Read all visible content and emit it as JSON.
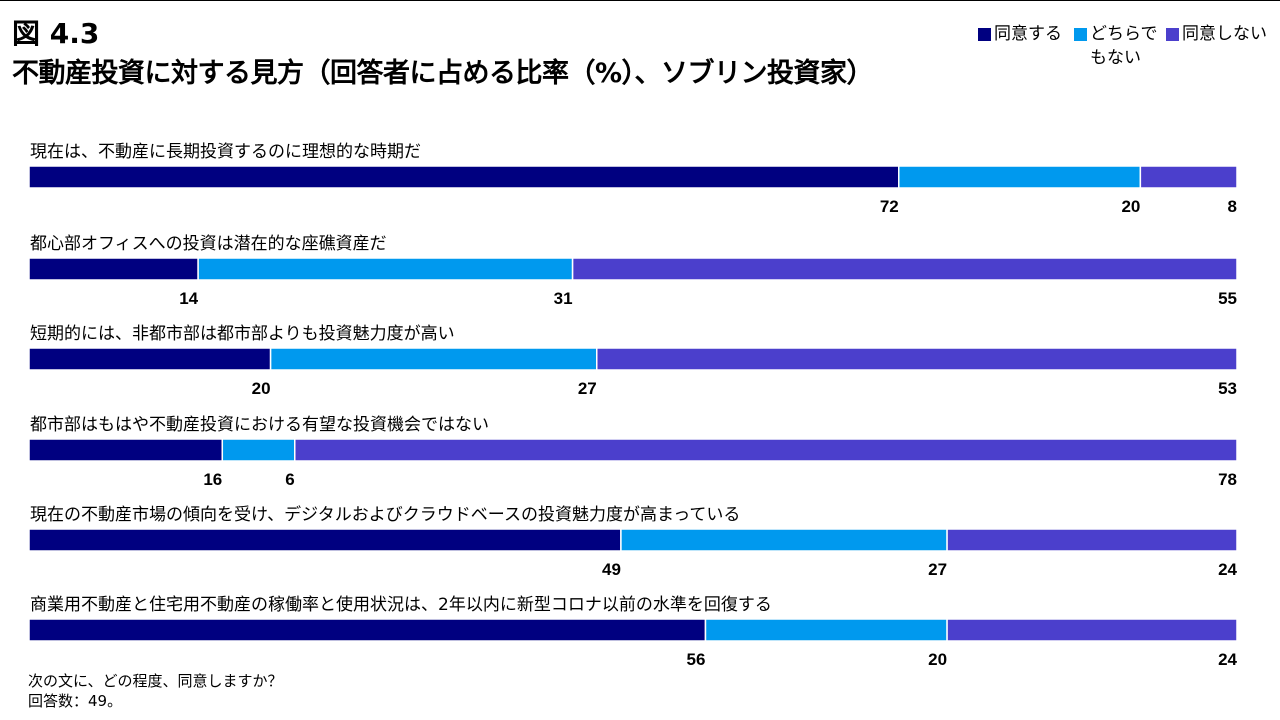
{
  "figure_number": "図 4.3",
  "title": "不動産投資に対する見方（回答者に占める比率（%）、ソブリン投資家）",
  "legend": [
    {
      "label": "同意する",
      "color": "#000080"
    },
    {
      "label": "どちらでもない",
      "color": "#0099EE"
    },
    {
      "label": "同意しない",
      "color": "#4B3FCC"
    }
  ],
  "footnotes": [
    "次の文に、どの程度、同意しますか？",
    "回答数：49。"
  ],
  "chart_data": {
    "type": "bar",
    "orientation": "horizontal",
    "stacked": true,
    "normalized_to": 100,
    "categories": [
      "現在は、不動産に長期投資するのに理想的な時期だ",
      "都心部オフィスへの投資は潜在的な座礁資産だ",
      "短期的には、非都市部は都市部よりも投資魅力度が高い",
      "都市部はもはや不動産投資における有望な投資機会ではない",
      "現在の不動産市場の傾向を受け、デジタルおよびクラウドベースの投資魅力度が高まっている",
      "商業用不動産と住宅用不動産の稼働率と使用状況は、2年以内に新型コロナ以前の水準を回復する"
    ],
    "series": [
      {
        "name": "同意する",
        "values": [
          72,
          14,
          20,
          16,
          49,
          56
        ]
      },
      {
        "name": "どちらでもない",
        "values": [
          20,
          31,
          27,
          6,
          27,
          20
        ]
      },
      {
        "name": "同意しない",
        "values": [
          8,
          55,
          53,
          78,
          24,
          24
        ]
      }
    ],
    "xlim": [
      0,
      100
    ],
    "grid": false,
    "legend_position": "top-right",
    "data_labels": "below-bar-end"
  }
}
